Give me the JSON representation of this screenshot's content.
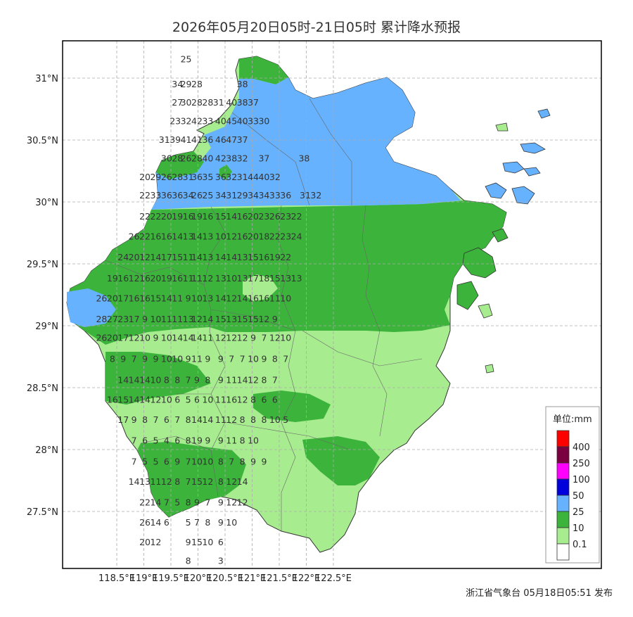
{
  "title": "2026年05月20日05时-21日05时 累计降水预报",
  "footer": "浙江省气象台 05月18日05:51 发布",
  "axes": {
    "lat_labels": [
      "31°N",
      "30.5°N",
      "30°N",
      "29.5°N",
      "29°N",
      "28.5°N",
      "28°N",
      "27.5°N"
    ],
    "lon_labels": [
      "118.5°E",
      "119°E",
      "119.5°E",
      "120°E",
      "120.5°E",
      "121°E",
      "121.5°E",
      "122°E",
      "122.5°E"
    ],
    "grid": true
  },
  "legend": {
    "title": "单位:mm",
    "classes": [
      {
        "label": "400",
        "color": "#ff0000"
      },
      {
        "label": "250",
        "color": "#7a0040"
      },
      {
        "label": "100",
        "color": "#ff00ff"
      },
      {
        "label": "50",
        "color": "#0000dd"
      },
      {
        "label": "25",
        "color": "#66b2ff"
      },
      {
        "label": "10",
        "color": "#3cb43c"
      },
      {
        "label": "0.1",
        "color": "#a8ec90"
      },
      {
        "label": "",
        "color": "#ffffff"
      }
    ]
  },
  "colors": {
    "light_green": "#a8ec90",
    "green": "#3cb43c",
    "blue": "#66b2ff"
  },
  "rows": [
    {
      "lat": 31.15,
      "cells": [
        [
          119.78,
          "25"
        ]
      ]
    },
    {
      "lat": 30.95,
      "cells": [
        [
          119.62,
          "34"
        ],
        [
          119.78,
          "29"
        ],
        [
          119.98,
          "28"
        ],
        [
          120.82,
          "38"
        ]
      ]
    },
    {
      "lat": 30.8,
      "cells": [
        [
          119.62,
          "27"
        ],
        [
          119.78,
          "30"
        ],
        [
          119.98,
          "28"
        ],
        [
          120.18,
          "28"
        ],
        [
          120.38,
          "31"
        ],
        [
          120.62,
          "40"
        ],
        [
          120.82,
          "38"
        ],
        [
          121.02,
          "37"
        ]
      ]
    },
    {
      "lat": 30.65,
      "cells": [
        [
          119.58,
          "23"
        ],
        [
          119.78,
          "32"
        ],
        [
          119.98,
          "42"
        ],
        [
          120.18,
          "33"
        ],
        [
          120.42,
          "40"
        ],
        [
          120.62,
          "45"
        ],
        [
          120.82,
          "40"
        ],
        [
          121.02,
          "33"
        ],
        [
          121.22,
          "30"
        ]
      ]
    },
    {
      "lat": 30.5,
      "cells": [
        [
          119.38,
          "31"
        ],
        [
          119.58,
          "39"
        ],
        [
          119.78,
          "41"
        ],
        [
          119.98,
          "41"
        ],
        [
          120.18,
          "36"
        ],
        [
          120.42,
          "46"
        ],
        [
          120.62,
          "47"
        ],
        [
          120.82,
          "37"
        ]
      ]
    },
    {
      "lat": 30.35,
      "cells": [
        [
          119.42,
          "30"
        ],
        [
          119.62,
          "28"
        ],
        [
          119.78,
          "26"
        ],
        [
          119.98,
          "28"
        ],
        [
          120.18,
          "40"
        ],
        [
          120.42,
          "42"
        ],
        [
          120.62,
          "38"
        ],
        [
          120.82,
          "32"
        ],
        [
          121.22,
          "37"
        ],
        [
          121.96,
          "38"
        ]
      ]
    },
    {
      "lat": 30.2,
      "cells": [
        [
          119.02,
          "20"
        ],
        [
          119.22,
          "29"
        ],
        [
          119.42,
          "26"
        ],
        [
          119.62,
          "28"
        ],
        [
          119.82,
          "31"
        ],
        [
          119.98,
          "36"
        ],
        [
          120.18,
          "35"
        ],
        [
          120.42,
          "36"
        ],
        [
          120.62,
          "32"
        ],
        [
          120.82,
          "31"
        ],
        [
          121.02,
          "44"
        ],
        [
          121.22,
          "40"
        ],
        [
          121.42,
          "32"
        ]
      ]
    },
    {
      "lat": 30.05,
      "cells": [
        [
          119.02,
          "22"
        ],
        [
          119.22,
          "33"
        ],
        [
          119.42,
          "36"
        ],
        [
          119.62,
          "36"
        ],
        [
          119.82,
          "34"
        ],
        [
          119.98,
          "26"
        ],
        [
          120.18,
          "25"
        ],
        [
          120.42,
          "34"
        ],
        [
          120.62,
          "31"
        ],
        [
          120.82,
          "29"
        ],
        [
          121.02,
          "34"
        ],
        [
          121.22,
          "34"
        ],
        [
          121.42,
          "33"
        ],
        [
          121.62,
          "36"
        ],
        [
          121.98,
          "31"
        ],
        [
          122.18,
          "32"
        ]
      ]
    },
    {
      "lat": 29.88,
      "cells": [
        [
          119.02,
          "22"
        ],
        [
          119.22,
          "22"
        ],
        [
          119.42,
          "20"
        ],
        [
          119.62,
          "19"
        ],
        [
          119.82,
          "16"
        ],
        [
          119.98,
          "19"
        ],
        [
          120.18,
          "16"
        ],
        [
          120.42,
          "15"
        ],
        [
          120.62,
          "14"
        ],
        [
          120.82,
          "16"
        ],
        [
          121.02,
          "20"
        ],
        [
          121.22,
          "23"
        ],
        [
          121.42,
          "26"
        ],
        [
          121.62,
          "23"
        ],
        [
          121.82,
          "22"
        ]
      ]
    },
    {
      "lat": 29.72,
      "cells": [
        [
          118.82,
          "26"
        ],
        [
          119.02,
          "22"
        ],
        [
          119.22,
          "16"
        ],
        [
          119.42,
          "16"
        ],
        [
          119.62,
          "14"
        ],
        [
          119.82,
          "13"
        ],
        [
          119.98,
          "14"
        ],
        [
          120.18,
          "13"
        ],
        [
          120.42,
          "10"
        ],
        [
          120.62,
          "12"
        ],
        [
          120.82,
          "16"
        ],
        [
          121.02,
          "20"
        ],
        [
          121.22,
          "18"
        ],
        [
          121.42,
          "22"
        ],
        [
          121.62,
          "23"
        ],
        [
          121.82,
          "24"
        ]
      ]
    },
    {
      "lat": 29.55,
      "cells": [
        [
          118.62,
          "24"
        ],
        [
          118.82,
          "20"
        ],
        [
          119.02,
          "12"
        ],
        [
          119.22,
          "14"
        ],
        [
          119.42,
          "17"
        ],
        [
          119.62,
          "15"
        ],
        [
          119.82,
          "11"
        ],
        [
          119.98,
          "14"
        ],
        [
          120.18,
          "13"
        ],
        [
          120.42,
          "14"
        ],
        [
          120.62,
          "14"
        ],
        [
          120.82,
          "13"
        ],
        [
          121.02,
          "15"
        ],
        [
          121.22,
          "16"
        ],
        [
          121.42,
          "19"
        ],
        [
          121.62,
          "22"
        ]
      ]
    },
    {
      "lat": 29.38,
      "cells": [
        [
          118.42,
          "19"
        ],
        [
          118.62,
          "16"
        ],
        [
          118.82,
          "12"
        ],
        [
          119.02,
          "16"
        ],
        [
          119.22,
          "20"
        ],
        [
          119.42,
          "19"
        ],
        [
          119.62,
          "16"
        ],
        [
          119.82,
          "11"
        ],
        [
          119.98,
          "11"
        ],
        [
          120.18,
          "12"
        ],
        [
          120.42,
          "13"
        ],
        [
          120.62,
          "10"
        ],
        [
          120.82,
          "13"
        ],
        [
          121.02,
          "17"
        ],
        [
          121.22,
          "18"
        ],
        [
          121.42,
          "15"
        ],
        [
          121.62,
          "13"
        ],
        [
          121.82,
          "13"
        ]
      ]
    },
    {
      "lat": 29.22,
      "cells": [
        [
          118.22,
          "26"
        ],
        [
          118.42,
          "20"
        ],
        [
          118.62,
          "17"
        ],
        [
          118.82,
          "16"
        ],
        [
          119.02,
          "16"
        ],
        [
          119.22,
          "15"
        ],
        [
          119.42,
          "14"
        ],
        [
          119.62,
          "11"
        ],
        [
          119.82,
          "9"
        ],
        [
          119.98,
          "10"
        ],
        [
          120.18,
          "13"
        ],
        [
          120.42,
          "14"
        ],
        [
          120.62,
          "12"
        ],
        [
          120.82,
          "14"
        ],
        [
          121.02,
          "16"
        ],
        [
          121.22,
          "16"
        ],
        [
          121.42,
          "11"
        ],
        [
          121.62,
          "10"
        ]
      ]
    },
    {
      "lat": 29.05,
      "cells": [
        [
          118.22,
          "28"
        ],
        [
          118.42,
          "27"
        ],
        [
          118.62,
          "23"
        ],
        [
          118.82,
          "17"
        ],
        [
          119.02,
          "9"
        ],
        [
          119.22,
          "10"
        ],
        [
          119.42,
          "11"
        ],
        [
          119.62,
          "11"
        ],
        [
          119.82,
          "13"
        ],
        [
          119.98,
          "12"
        ],
        [
          120.18,
          "14"
        ],
        [
          120.42,
          "15"
        ],
        [
          120.62,
          "13"
        ],
        [
          120.82,
          "15"
        ],
        [
          121.02,
          "15"
        ],
        [
          121.22,
          "12"
        ],
        [
          121.42,
          "9"
        ]
      ]
    },
    {
      "lat": 28.9,
      "cells": [
        [
          118.22,
          "26"
        ],
        [
          118.42,
          "20"
        ],
        [
          118.62,
          "17"
        ],
        [
          118.82,
          "12"
        ],
        [
          119.02,
          "10"
        ],
        [
          119.22,
          "9"
        ],
        [
          119.42,
          "10"
        ],
        [
          119.62,
          "14"
        ],
        [
          119.82,
          "14"
        ],
        [
          119.98,
          "14"
        ],
        [
          120.18,
          "11"
        ],
        [
          120.42,
          "12"
        ],
        [
          120.62,
          "12"
        ],
        [
          120.82,
          "12"
        ],
        [
          121.02,
          "9"
        ],
        [
          121.22,
          "7"
        ],
        [
          121.42,
          "12"
        ],
        [
          121.62,
          "10"
        ]
      ]
    },
    {
      "lat": 28.73,
      "cells": [
        [
          118.42,
          "8"
        ],
        [
          118.62,
          "9"
        ],
        [
          118.82,
          "7"
        ],
        [
          119.02,
          "9"
        ],
        [
          119.22,
          "9"
        ],
        [
          119.42,
          "10"
        ],
        [
          119.62,
          "10"
        ],
        [
          119.82,
          "9"
        ],
        [
          119.98,
          "11"
        ],
        [
          120.18,
          "9"
        ],
        [
          120.42,
          "9"
        ],
        [
          120.62,
          "7"
        ],
        [
          120.82,
          "7"
        ],
        [
          121.02,
          "10"
        ],
        [
          121.22,
          "9"
        ],
        [
          121.42,
          "8"
        ],
        [
          121.62,
          "7"
        ]
      ]
    },
    {
      "lat": 28.56,
      "cells": [
        [
          118.62,
          "14"
        ],
        [
          118.82,
          "14"
        ],
        [
          119.02,
          "14"
        ],
        [
          119.22,
          "10"
        ],
        [
          119.42,
          "8"
        ],
        [
          119.62,
          "8"
        ],
        [
          119.82,
          "7"
        ],
        [
          119.98,
          "9"
        ],
        [
          120.18,
          "8"
        ],
        [
          120.42,
          "9"
        ],
        [
          120.62,
          "11"
        ],
        [
          120.82,
          "14"
        ],
        [
          121.02,
          "12"
        ],
        [
          121.22,
          "8"
        ],
        [
          121.42,
          "7"
        ]
      ]
    },
    {
      "lat": 28.4,
      "cells": [
        [
          118.42,
          "16"
        ],
        [
          118.62,
          "15"
        ],
        [
          118.82,
          "14"
        ],
        [
          119.02,
          "14"
        ],
        [
          119.22,
          "12"
        ],
        [
          119.42,
          "10"
        ],
        [
          119.62,
          "6"
        ],
        [
          119.82,
          "5"
        ],
        [
          119.98,
          "6"
        ],
        [
          120.18,
          "10"
        ],
        [
          120.42,
          "11"
        ],
        [
          120.62,
          "16"
        ],
        [
          120.82,
          "12"
        ],
        [
          121.02,
          "8"
        ],
        [
          121.22,
          "6"
        ],
        [
          121.42,
          "6"
        ]
      ]
    },
    {
      "lat": 28.24,
      "cells": [
        [
          118.62,
          "17"
        ],
        [
          118.82,
          "9"
        ],
        [
          119.02,
          "8"
        ],
        [
          119.22,
          "7"
        ],
        [
          119.42,
          "6"
        ],
        [
          119.62,
          "7"
        ],
        [
          119.82,
          "8"
        ],
        [
          119.98,
          "14"
        ],
        [
          120.18,
          "14"
        ],
        [
          120.42,
          "11"
        ],
        [
          120.62,
          "12"
        ],
        [
          120.82,
          "8"
        ],
        [
          121.02,
          "8"
        ],
        [
          121.22,
          "8"
        ],
        [
          121.42,
          "10"
        ],
        [
          121.62,
          "5"
        ]
      ]
    },
    {
      "lat": 28.07,
      "cells": [
        [
          118.82,
          "7"
        ],
        [
          119.02,
          "6"
        ],
        [
          119.22,
          "5"
        ],
        [
          119.42,
          "4"
        ],
        [
          119.62,
          "6"
        ],
        [
          119.82,
          "8"
        ],
        [
          119.98,
          "19"
        ],
        [
          120.18,
          "9"
        ],
        [
          120.42,
          "9"
        ],
        [
          120.62,
          "11"
        ],
        [
          120.82,
          "8"
        ],
        [
          121.02,
          "10"
        ]
      ]
    },
    {
      "lat": 27.9,
      "cells": [
        [
          118.82,
          "7"
        ],
        [
          119.02,
          "5"
        ],
        [
          119.22,
          "5"
        ],
        [
          119.42,
          "6"
        ],
        [
          119.62,
          "9"
        ],
        [
          119.82,
          "7"
        ],
        [
          119.98,
          "10"
        ],
        [
          120.18,
          "10"
        ],
        [
          120.42,
          "8"
        ],
        [
          120.62,
          "7"
        ],
        [
          120.82,
          "8"
        ],
        [
          121.02,
          "9"
        ],
        [
          121.22,
          "9"
        ]
      ]
    },
    {
      "lat": 27.74,
      "cells": [
        [
          118.82,
          "14"
        ],
        [
          119.02,
          "13"
        ],
        [
          119.22,
          "11"
        ],
        [
          119.42,
          "12"
        ],
        [
          119.62,
          "8"
        ],
        [
          119.82,
          "7"
        ],
        [
          119.98,
          "15"
        ],
        [
          120.18,
          "12"
        ],
        [
          120.42,
          "8"
        ],
        [
          120.62,
          "12"
        ],
        [
          120.82,
          "14"
        ]
      ]
    },
    {
      "lat": 27.57,
      "cells": [
        [
          119.02,
          "22"
        ],
        [
          119.22,
          "14"
        ],
        [
          119.42,
          "7"
        ],
        [
          119.62,
          "5"
        ],
        [
          119.82,
          "8"
        ],
        [
          119.98,
          "9"
        ],
        [
          120.18,
          "7"
        ],
        [
          120.42,
          "9"
        ],
        [
          120.62,
          "12"
        ],
        [
          120.82,
          "12"
        ]
      ]
    },
    {
      "lat": 27.41,
      "cells": [
        [
          119.02,
          "26"
        ],
        [
          119.22,
          "14"
        ],
        [
          119.42,
          "6"
        ],
        [
          119.82,
          "5"
        ],
        [
          119.98,
          "7"
        ],
        [
          120.18,
          "8"
        ],
        [
          120.42,
          "9"
        ],
        [
          120.62,
          "10"
        ]
      ]
    },
    {
      "lat": 27.25,
      "cells": [
        [
          119.02,
          "20"
        ],
        [
          119.22,
          "12"
        ],
        [
          119.82,
          "9"
        ],
        [
          119.98,
          "15"
        ],
        [
          120.18,
          "10"
        ],
        [
          120.42,
          "6"
        ]
      ]
    },
    {
      "lat": 27.1,
      "cells": [
        [
          119.82,
          "8"
        ],
        [
          120.42,
          "3"
        ]
      ]
    }
  ]
}
